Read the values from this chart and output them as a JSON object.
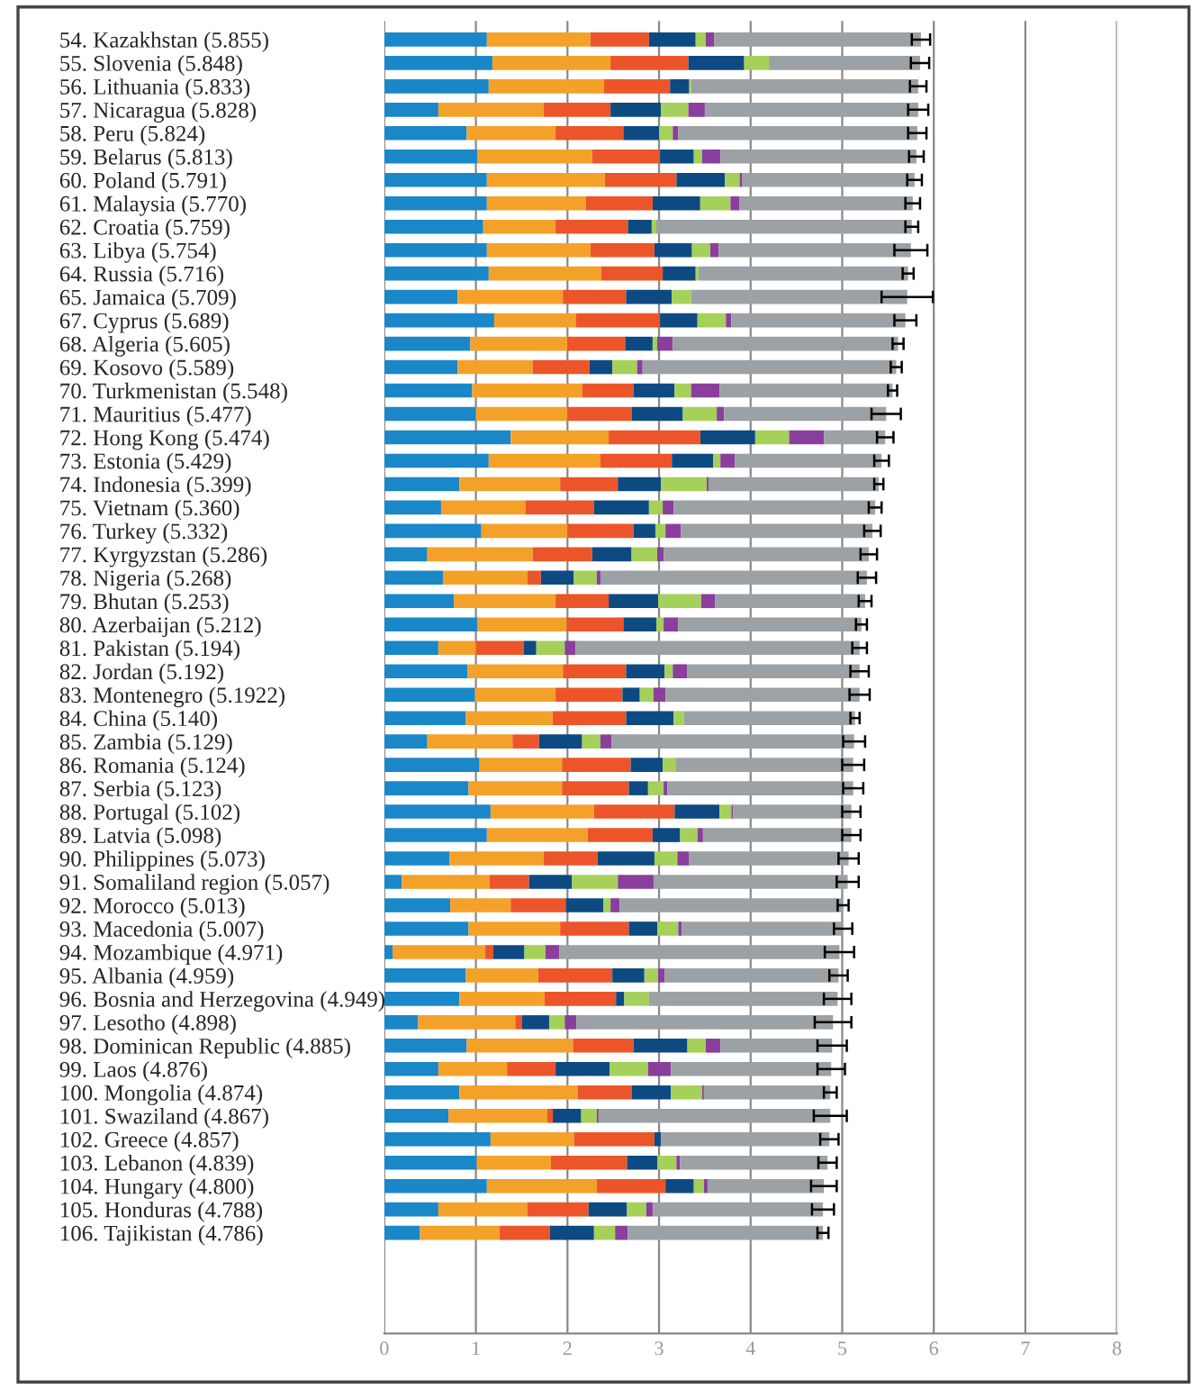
{
  "chart_data": {
    "type": "bar",
    "orientation": "horizontal",
    "stacked": true,
    "categories": [
      "54. Kazakhstan (5.855)",
      "55. Slovenia (5.848)",
      "56. Lithuania (5.833)",
      "57. Nicaragua (5.828)",
      "58. Peru (5.824)",
      "59. Belarus (5.813)",
      "60. Poland (5.791)",
      "61. Malaysia (5.770)",
      "62. Croatia (5.759)",
      "63. Libya (5.754)",
      "64. Russia (5.716)",
      "65. Jamaica (5.709)",
      "67. Cyprus (5.689)",
      "68. Algeria (5.605)",
      "69. Kosovo (5.589)",
      "70. Turkmenistan (5.548)",
      "71. Mauritius (5.477)",
      "72. Hong Kong (5.474)",
      "73. Estonia (5.429)",
      "74. Indonesia (5.399)",
      "75. Vietnam (5.360)",
      "76. Turkey (5.332)",
      "77. Kyrgyzstan (5.286)",
      "78. Nigeria (5.268)",
      "79. Bhutan (5.253)",
      "80. Azerbaijan (5.212)",
      "81. Pakistan (5.194)",
      "82. Jordan (5.192)",
      "83. Montenegro (5.1922)",
      "84. China (5.140)",
      "85. Zambia (5.129)",
      "86. Romania (5.124)",
      "87. Serbia (5.123)",
      "88. Portugal (5.102)",
      "89. Latvia (5.098)",
      "90. Philippines (5.073)",
      "91. Somaliland region (5.057)",
      "92. Morocco (5.013)",
      "93. Macedonia (5.007)",
      "94. Mozambique (4.971)",
      "95. Albania (4.959)",
      "96. Bosnia and Herzegovina (4.949)",
      "97. Lesotho (4.898)",
      "98. Dominican Republic (4.885)",
      "99. Laos (4.876)",
      "100. Mongolia (4.874)",
      "101. Swaziland (4.867)",
      "102. Greece (4.857)",
      "103. Lebanon (4.839)",
      "104. Hungary (4.800)",
      "105. Honduras (4.788)",
      "106. Tajikistan (4.786)"
    ],
    "series": [
      {
        "color": "#1a87c8",
        "values": [
          1.12,
          1.18,
          1.14,
          0.59,
          0.9,
          1.02,
          1.12,
          1.12,
          1.08,
          1.12,
          1.14,
          0.8,
          1.2,
          0.94,
          0.8,
          0.96,
          1.0,
          1.38,
          1.14,
          0.82,
          0.62,
          1.06,
          0.47,
          0.64,
          0.76,
          1.02,
          0.59,
          0.91,
          0.99,
          0.89,
          0.47,
          1.04,
          0.92,
          1.16,
          1.12,
          0.71,
          0.19,
          0.72,
          0.92,
          0.09,
          0.89,
          0.82,
          0.37,
          0.9,
          0.59,
          0.82,
          0.7,
          1.16,
          1.01,
          1.12,
          0.59,
          0.39
        ]
      },
      {
        "color": "#f4a12a",
        "values": [
          1.13,
          1.29,
          1.26,
          1.15,
          0.97,
          1.25,
          1.29,
          1.08,
          0.79,
          1.13,
          1.23,
          1.15,
          0.89,
          1.06,
          0.82,
          1.2,
          1.0,
          1.07,
          1.22,
          1.1,
          0.92,
          0.94,
          1.15,
          0.92,
          1.11,
          0.97,
          0.41,
          1.04,
          0.88,
          0.95,
          0.93,
          0.9,
          1.02,
          1.13,
          1.1,
          1.03,
          0.96,
          0.66,
          1.0,
          1.01,
          0.79,
          0.93,
          1.06,
          1.16,
          0.75,
          1.29,
          1.08,
          0.91,
          0.81,
          1.2,
          0.97,
          0.87
        ]
      },
      {
        "color": "#ec5529",
        "values": [
          0.64,
          0.85,
          0.72,
          0.73,
          0.74,
          0.74,
          0.78,
          0.73,
          0.79,
          0.7,
          0.67,
          0.69,
          0.92,
          0.63,
          0.62,
          0.56,
          0.7,
          1.0,
          0.78,
          0.63,
          0.75,
          0.72,
          0.65,
          0.15,
          0.58,
          0.62,
          0.52,
          0.69,
          0.73,
          0.8,
          0.29,
          0.75,
          0.73,
          0.88,
          0.71,
          0.59,
          0.43,
          0.6,
          0.75,
          0.09,
          0.81,
          0.78,
          0.07,
          0.66,
          0.53,
          0.59,
          0.06,
          0.88,
          0.83,
          0.75,
          0.67,
          0.55
        ]
      },
      {
        "color": "#0e4a82",
        "values": [
          0.51,
          0.61,
          0.21,
          0.55,
          0.39,
          0.37,
          0.53,
          0.52,
          0.26,
          0.41,
          0.36,
          0.5,
          0.41,
          0.3,
          0.25,
          0.45,
          0.56,
          0.6,
          0.45,
          0.47,
          0.6,
          0.24,
          0.43,
          0.36,
          0.54,
          0.36,
          0.14,
          0.42,
          0.19,
          0.52,
          0.47,
          0.35,
          0.21,
          0.49,
          0.3,
          0.62,
          0.47,
          0.41,
          0.31,
          0.34,
          0.35,
          0.09,
          0.3,
          0.59,
          0.59,
          0.43,
          0.31,
          0.07,
          0.33,
          0.31,
          0.42,
          0.48
        ]
      },
      {
        "color": "#a5d05a",
        "values": [
          0.11,
          0.27,
          0.02,
          0.3,
          0.15,
          0.09,
          0.16,
          0.33,
          0.05,
          0.2,
          0.03,
          0.21,
          0.31,
          0.05,
          0.27,
          0.18,
          0.37,
          0.37,
          0.08,
          0.5,
          0.15,
          0.11,
          0.28,
          0.25,
          0.47,
          0.08,
          0.31,
          0.09,
          0.15,
          0.11,
          0.2,
          0.14,
          0.17,
          0.13,
          0.19,
          0.25,
          0.5,
          0.08,
          0.23,
          0.23,
          0.15,
          0.27,
          0.17,
          0.2,
          0.42,
          0.34,
          0.17,
          0.0,
          0.21,
          0.11,
          0.21,
          0.23
        ]
      },
      {
        "color": "#8a3f9c",
        "values": [
          0.09,
          0.0,
          0.0,
          0.18,
          0.06,
          0.2,
          0.03,
          0.1,
          0.0,
          0.09,
          0.0,
          0.0,
          0.06,
          0.17,
          0.06,
          0.31,
          0.08,
          0.38,
          0.16,
          0.02,
          0.12,
          0.17,
          0.07,
          0.04,
          0.15,
          0.16,
          0.12,
          0.16,
          0.13,
          0.0,
          0.12,
          0.0,
          0.04,
          0.02,
          0.06,
          0.13,
          0.39,
          0.1,
          0.04,
          0.15,
          0.07,
          0.0,
          0.13,
          0.16,
          0.25,
          0.02,
          0.02,
          0.0,
          0.04,
          0.04,
          0.07,
          0.14
        ]
      },
      {
        "color": "#9ba1a5",
        "values": [
          2.26,
          1.65,
          2.48,
          2.33,
          2.61,
          2.14,
          1.88,
          1.89,
          2.79,
          2.1,
          2.29,
          2.36,
          1.9,
          2.46,
          2.77,
          1.89,
          1.77,
          0.67,
          1.6,
          1.86,
          2.2,
          2.09,
          2.24,
          2.91,
          1.64,
          2.0,
          3.1,
          1.88,
          2.12,
          1.87,
          2.65,
          1.94,
          2.03,
          1.29,
          1.62,
          1.74,
          2.12,
          2.44,
          1.76,
          3.06,
          1.9,
          2.06,
          2.8,
          1.22,
          1.75,
          1.38,
          2.53,
          1.84,
          1.61,
          1.27,
          1.86,
          2.13
        ],
        "errors": [
          0.1,
          0.1,
          0.09,
          0.11,
          0.1,
          0.08,
          0.08,
          0.08,
          0.07,
          0.18,
          0.06,
          0.28,
          0.12,
          0.06,
          0.06,
          0.05,
          0.16,
          0.09,
          0.08,
          0.05,
          0.07,
          0.09,
          0.09,
          0.1,
          0.07,
          0.06,
          0.08,
          0.1,
          0.11,
          0.05,
          0.12,
          0.12,
          0.11,
          0.1,
          0.1,
          0.11,
          0.12,
          0.06,
          0.1,
          0.16,
          0.1,
          0.15,
          0.2,
          0.16,
          0.15,
          0.07,
          0.18,
          0.1,
          0.1,
          0.14,
          0.12,
          0.06
        ]
      }
    ],
    "xlim": [
      0,
      8
    ],
    "xticks": [
      0,
      1,
      2,
      3,
      4,
      5,
      6,
      7,
      8
    ],
    "grid": "x"
  }
}
